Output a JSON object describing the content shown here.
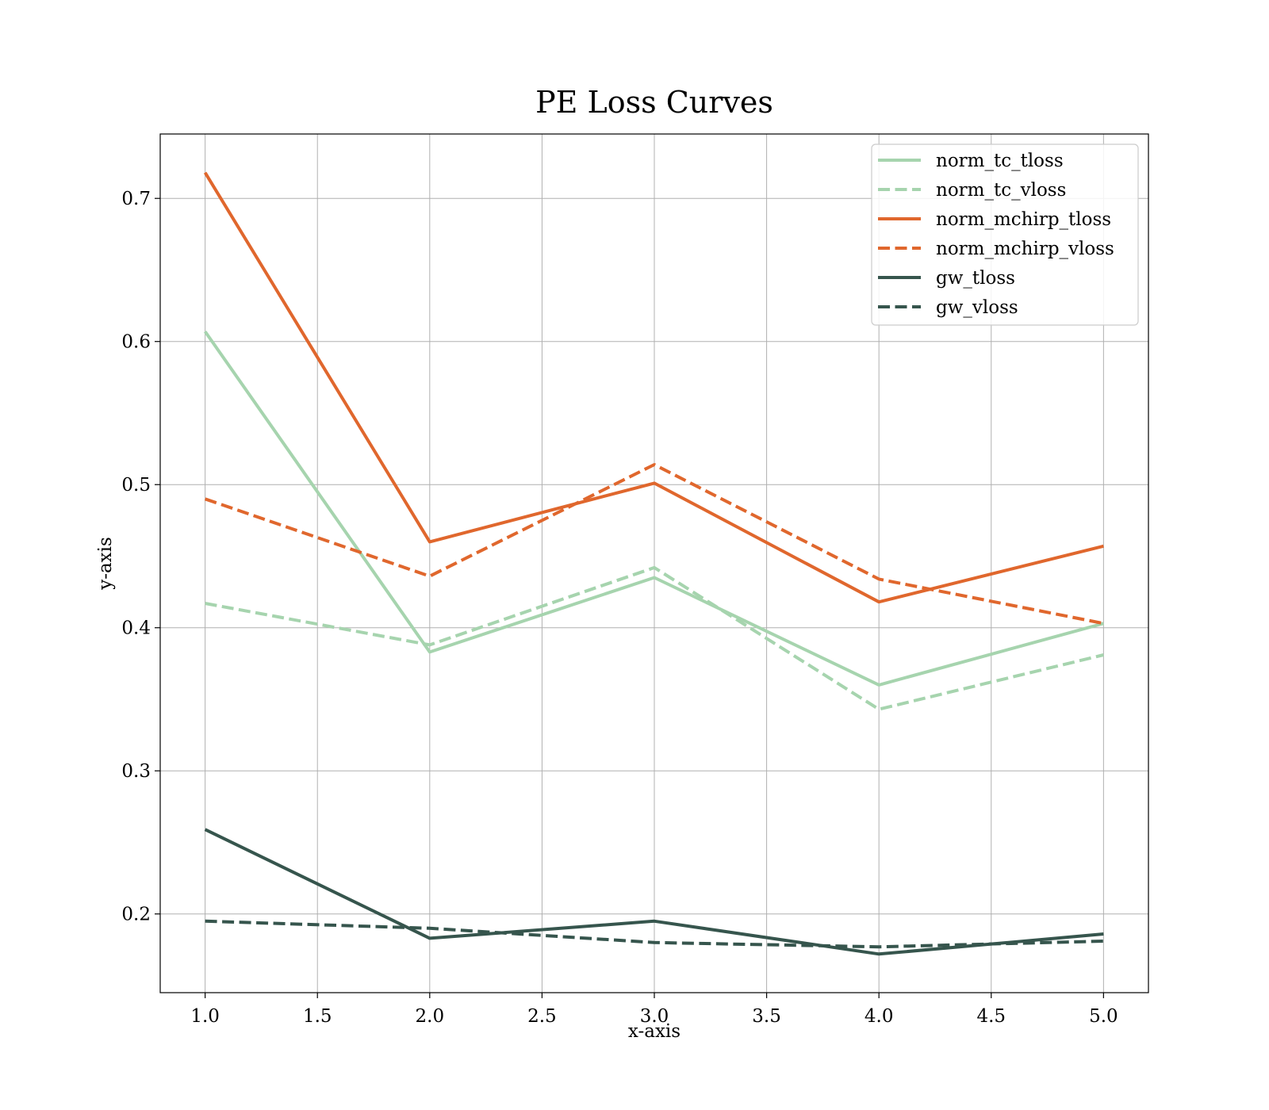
{
  "chart_data": {
    "type": "line",
    "title": "PE Loss Curves",
    "xlabel": "x-axis",
    "ylabel": "y-axis",
    "xlim": [
      0.8,
      5.2
    ],
    "ylim": [
      0.145,
      0.745
    ],
    "xticks": [
      1.0,
      1.5,
      2.0,
      2.5,
      3.0,
      3.5,
      4.0,
      4.5,
      5.0
    ],
    "xtick_labels": [
      "1.0",
      "1.5",
      "2.0",
      "2.5",
      "3.0",
      "3.5",
      "4.0",
      "4.5",
      "5.0"
    ],
    "yticks": [
      0.2,
      0.3,
      0.4,
      0.5,
      0.6,
      0.7
    ],
    "ytick_labels": [
      "0.2",
      "0.3",
      "0.4",
      "0.5",
      "0.6",
      "0.7"
    ],
    "grid": true,
    "legend_position": "top-right",
    "x": [
      1,
      2,
      3,
      4,
      5
    ],
    "series": [
      {
        "name": "norm_tc_tloss",
        "color": "#a6d4ae",
        "dash": "solid",
        "values": [
          0.607,
          0.383,
          0.435,
          0.36,
          0.403
        ]
      },
      {
        "name": "norm_tc_vloss",
        "color": "#a6d4ae",
        "dash": "dashed",
        "values": [
          0.417,
          0.388,
          0.442,
          0.343,
          0.381
        ]
      },
      {
        "name": "norm_mchirp_tloss",
        "color": "#e0672d",
        "dash": "solid",
        "values": [
          0.718,
          0.46,
          0.501,
          0.418,
          0.457
        ]
      },
      {
        "name": "norm_mchirp_vloss",
        "color": "#e0672d",
        "dash": "dashed",
        "values": [
          0.49,
          0.436,
          0.514,
          0.434,
          0.403
        ]
      },
      {
        "name": "gw_tloss",
        "color": "#36554d",
        "dash": "solid",
        "values": [
          0.259,
          0.183,
          0.195,
          0.172,
          0.186
        ]
      },
      {
        "name": "gw_vloss",
        "color": "#36554d",
        "dash": "dashed",
        "values": [
          0.195,
          0.19,
          0.18,
          0.177,
          0.181
        ]
      }
    ]
  }
}
